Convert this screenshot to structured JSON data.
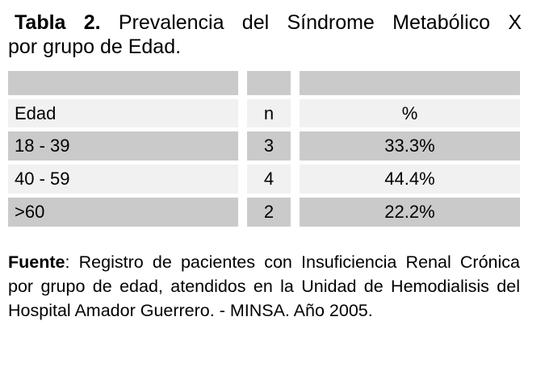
{
  "title": {
    "line1_bold": "Tabla 2.",
    "line1_rest": " Prevalencia del Síndrome Metabólico X",
    "line2": "por grupo de Edad."
  },
  "table": {
    "headers": {
      "edad": "Edad",
      "n": "n",
      "pct": "%"
    },
    "rows": [
      {
        "edad": "18 - 39",
        "n": "3",
        "pct": "33.3%"
      },
      {
        "edad": "40 - 59",
        "n": "4",
        "pct": "44.4%"
      },
      {
        "edad": ">60",
        "n": "2",
        "pct": "22.2%"
      }
    ]
  },
  "footer": {
    "line1_bold": "Fuente",
    "line1_rest": ": Registro de pacientes con Insuficiencia Renal Crónica",
    "line2": "por grupo de edad, atendidos en la Unidad de Hemodialisis del",
    "line3": "Hospital Amador Guerrero. - MINSA. Año 2005."
  },
  "colors": {
    "row_dark": "#cacaca",
    "row_light": "#f1f1f1",
    "text": "#000000",
    "background": "#ffffff"
  }
}
